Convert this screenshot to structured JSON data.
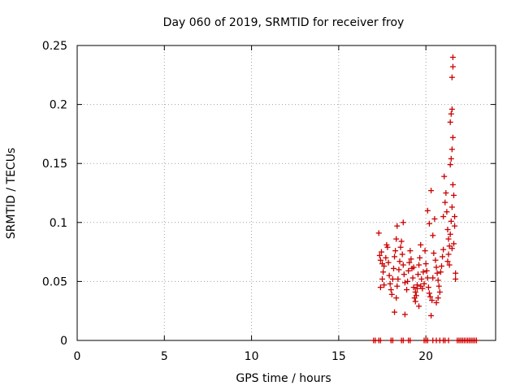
{
  "chart_data": {
    "type": "scatter",
    "title": "Day 060 of 2019, SRMTID for receiver froy",
    "xlabel": "GPS time / hours",
    "ylabel": "SRMTID / TECUs",
    "xlim": [
      0,
      24
    ],
    "ylim": [
      0,
      0.25
    ],
    "xticks": [
      0,
      5,
      10,
      15,
      20
    ],
    "yticks": [
      0,
      0.05,
      0.1,
      0.15,
      0.2,
      0.25
    ],
    "xtick_labels": [
      "0",
      "5",
      "10",
      "15",
      "20"
    ],
    "ytick_labels": [
      "0",
      "0.05",
      "0.1",
      "0.15",
      "0.2",
      "0.25"
    ],
    "grid": true,
    "marker": "plus",
    "color": "#cc0000",
    "series": [
      {
        "points": [
          [
            17.3,
            0.091
          ],
          [
            17.35,
            0.072
          ],
          [
            17.4,
            0.068
          ],
          [
            17.45,
            0.075
          ],
          [
            17.5,
            0.065
          ],
          [
            17.55,
            0.058
          ],
          [
            17.6,
            0.047
          ],
          [
            17.4,
            0.045
          ],
          [
            17.5,
            0.052
          ],
          [
            17.6,
            0.063
          ],
          [
            17.7,
            0.07
          ],
          [
            17.75,
            0.081
          ],
          [
            17.8,
            0.079
          ],
          [
            17.85,
            0.066
          ],
          [
            17.9,
            0.055
          ],
          [
            17.95,
            0.048
          ],
          [
            18.0,
            0.043
          ],
          [
            18.05,
            0.039
          ],
          [
            18.1,
            0.052
          ],
          [
            18.15,
            0.061
          ],
          [
            18.2,
            0.071
          ],
          [
            18.25,
            0.076
          ],
          [
            18.3,
            0.086
          ],
          [
            18.2,
            0.024
          ],
          [
            18.3,
            0.036
          ],
          [
            18.35,
            0.046
          ],
          [
            18.4,
            0.052
          ],
          [
            18.45,
            0.06
          ],
          [
            18.5,
            0.067
          ],
          [
            18.55,
            0.079
          ],
          [
            18.6,
            0.084
          ],
          [
            18.65,
            0.073
          ],
          [
            18.7,
            0.064
          ],
          [
            18.75,
            0.056
          ],
          [
            18.8,
            0.049
          ],
          [
            18.35,
            0.097
          ],
          [
            18.7,
            0.1
          ],
          [
            18.8,
            0.022
          ],
          [
            18.9,
            0.043
          ],
          [
            18.95,
            0.05
          ],
          [
            19.0,
            0.059
          ],
          [
            19.05,
            0.066
          ],
          [
            19.1,
            0.076
          ],
          [
            19.15,
            0.069
          ],
          [
            19.2,
            0.061
          ],
          [
            19.25,
            0.053
          ],
          [
            19.3,
            0.045
          ],
          [
            19.35,
            0.036
          ],
          [
            19.4,
            0.033
          ],
          [
            19.45,
            0.038
          ],
          [
            19.5,
            0.047
          ],
          [
            19.55,
            0.056
          ],
          [
            19.6,
            0.064
          ],
          [
            19.65,
            0.07
          ],
          [
            19.7,
            0.081
          ],
          [
            19.3,
            0.062
          ],
          [
            19.4,
            0.041
          ],
          [
            19.5,
            0.044
          ],
          [
            19.6,
            0.029
          ],
          [
            19.7,
            0.046
          ],
          [
            19.75,
            0.052
          ],
          [
            19.8,
            0.044
          ],
          [
            19.85,
            0.058
          ],
          [
            19.9,
            0.048
          ],
          [
            19.95,
            0.076
          ],
          [
            20.0,
            0.065
          ],
          [
            20.05,
            0.059
          ],
          [
            20.1,
            0.053
          ],
          [
            20.15,
            0.045
          ],
          [
            20.2,
            0.04
          ],
          [
            20.25,
            0.037
          ],
          [
            20.3,
            0.021
          ],
          [
            20.35,
            0.034
          ],
          [
            20.4,
            0.053
          ],
          [
            20.45,
            0.074
          ],
          [
            20.1,
            0.11
          ],
          [
            20.2,
            0.099
          ],
          [
            20.3,
            0.127
          ],
          [
            20.4,
            0.089
          ],
          [
            20.5,
            0.103
          ],
          [
            20.55,
            0.068
          ],
          [
            20.6,
            0.062
          ],
          [
            20.65,
            0.057
          ],
          [
            20.7,
            0.051
          ],
          [
            20.75,
            0.046
          ],
          [
            20.8,
            0.041
          ],
          [
            20.85,
            0.058
          ],
          [
            20.9,
            0.063
          ],
          [
            20.95,
            0.071
          ],
          [
            21.0,
            0.077
          ],
          [
            20.6,
            0.032
          ],
          [
            20.7,
            0.036
          ],
          [
            21.0,
            0.105
          ],
          [
            21.05,
            0.139
          ],
          [
            21.1,
            0.117
          ],
          [
            21.15,
            0.125
          ],
          [
            21.2,
            0.109
          ],
          [
            21.25,
            0.094
          ],
          [
            21.3,
            0.086
          ],
          [
            21.35,
            0.08
          ],
          [
            21.4,
            0.09
          ],
          [
            21.45,
            0.101
          ],
          [
            21.5,
            0.113
          ],
          [
            21.55,
            0.132
          ],
          [
            21.25,
            0.067
          ],
          [
            21.3,
            0.073
          ],
          [
            21.35,
            0.064
          ],
          [
            21.4,
            0.149
          ],
          [
            21.45,
            0.154
          ],
          [
            21.5,
            0.162
          ],
          [
            21.55,
            0.172
          ],
          [
            21.4,
            0.185
          ],
          [
            21.45,
            0.192
          ],
          [
            21.5,
            0.196
          ],
          [
            21.5,
            0.223
          ],
          [
            21.55,
            0.232
          ],
          [
            21.55,
            0.24
          ],
          [
            21.6,
            0.123
          ],
          [
            21.65,
            0.105
          ],
          [
            21.7,
            0.057
          ],
          [
            21.7,
            0.052
          ],
          [
            21.6,
            0.082
          ],
          [
            21.65,
            0.097
          ],
          [
            21.5,
            0.078
          ]
        ]
      },
      {
        "points": [
          [
            17.0,
            0
          ],
          [
            17.1,
            0
          ],
          [
            17.3,
            0
          ],
          [
            17.4,
            0
          ],
          [
            18.0,
            0
          ],
          [
            18.1,
            0
          ],
          [
            18.6,
            0
          ],
          [
            18.7,
            0
          ],
          [
            19.0,
            0
          ],
          [
            19.1,
            0
          ],
          [
            19.9,
            0
          ],
          [
            20.0,
            0
          ],
          [
            20.1,
            0
          ],
          [
            20.4,
            0
          ],
          [
            20.6,
            0
          ],
          [
            20.8,
            0
          ],
          [
            21.0,
            0
          ],
          [
            21.1,
            0
          ],
          [
            21.3,
            0
          ],
          [
            21.8,
            0
          ],
          [
            21.9,
            0
          ],
          [
            22.0,
            0
          ],
          [
            22.1,
            0
          ],
          [
            22.2,
            0
          ],
          [
            22.3,
            0
          ],
          [
            22.4,
            0
          ],
          [
            22.5,
            0
          ],
          [
            22.6,
            0
          ],
          [
            22.7,
            0
          ],
          [
            22.8,
            0
          ],
          [
            22.9,
            0
          ]
        ]
      }
    ]
  }
}
